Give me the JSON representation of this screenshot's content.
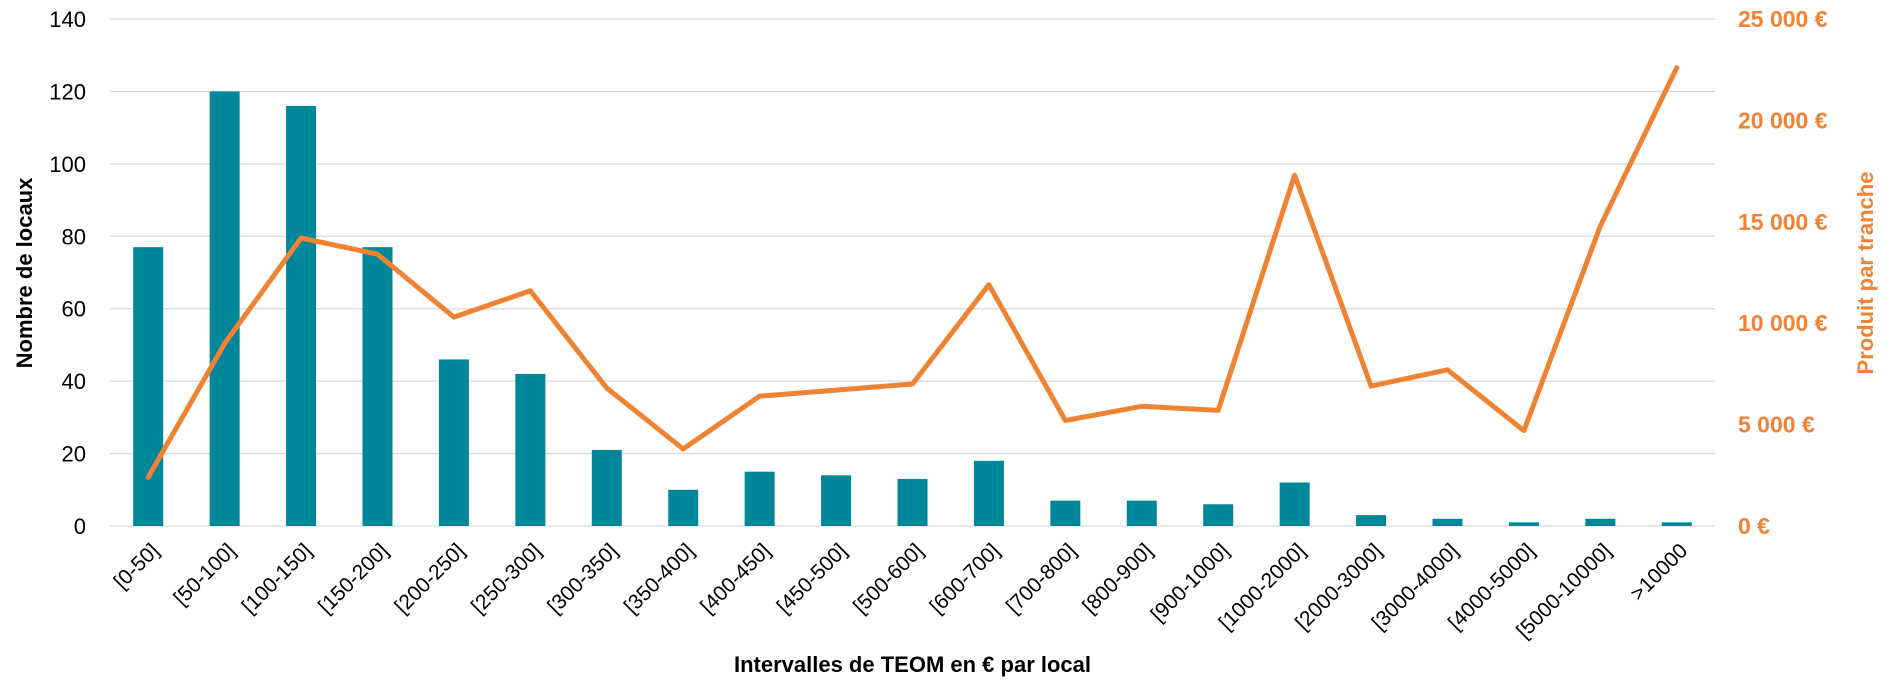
{
  "chart_data": {
    "type": "bar+line",
    "title": "",
    "xlabel": "Intervalles de TEOM en € par local",
    "ylabel": "Nombre de locaux",
    "y2label": "Produit par tranche",
    "ylim": [
      0,
      140
    ],
    "y2lim": [
      0,
      25000
    ],
    "yticks": [
      "0",
      "20",
      "40",
      "60",
      "80",
      "100",
      "120",
      "140"
    ],
    "y2ticks": [
      "0 €",
      "5 000 €",
      "10 000 €",
      "15 000 €",
      "20 000 €",
      "25 000 €"
    ],
    "grid": true,
    "legend": "none",
    "categories": [
      "[0-50]",
      "[50-100]",
      "[100-150]",
      "[150-200]",
      "[200-250]",
      "[250-300]",
      "[300-350]",
      "[350-400]",
      "[400-450]",
      "[450-500]",
      "[500-600]",
      "[600-700]",
      "[700-800]",
      "[800-900]",
      "[900-1000]",
      "[1000-2000]",
      "[2000-3000]",
      "[3000-4000]",
      "[4000-5000]",
      "[5000-10000]",
      ">10000"
    ],
    "series": [
      {
        "type": "bar",
        "axis": "left",
        "color": "#00879A",
        "values": [
          77,
          120,
          116,
          77,
          46,
          42,
          21,
          10,
          15,
          14,
          13,
          18,
          7,
          7,
          6,
          12,
          3,
          2,
          1,
          2,
          1
        ]
      },
      {
        "type": "line",
        "axis": "right",
        "color": "#F08233",
        "values": [
          2400,
          9000,
          14200,
          13400,
          10300,
          11600,
          6800,
          3800,
          6400,
          6700,
          7000,
          11900,
          5200,
          5900,
          5700,
          17300,
          6900,
          7700,
          4700,
          14800,
          22600
        ]
      }
    ]
  }
}
